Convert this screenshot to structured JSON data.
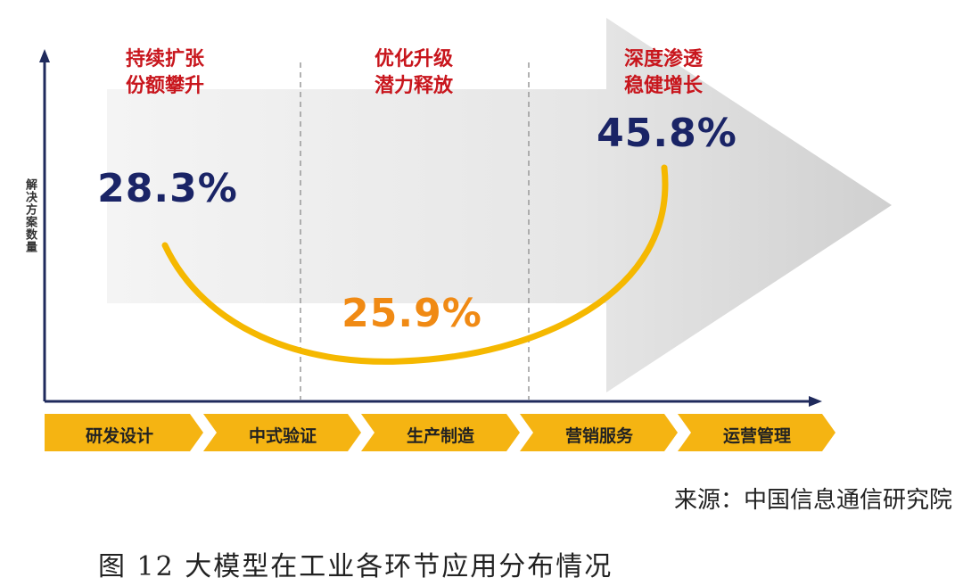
{
  "y_axis_label": "解决方案数量",
  "phases": [
    {
      "lines": [
        "持续扩张",
        "份额攀升"
      ],
      "share": "28.3%"
    },
    {
      "lines": [
        "优化升级",
        "潜力释放"
      ],
      "share": "25.9%"
    },
    {
      "lines": [
        "深度渗透",
        "稳健增长"
      ],
      "share": "45.8%"
    }
  ],
  "stages": [
    "研发设计",
    "中式验证",
    "生产制造",
    "营销服务",
    "运营管理"
  ],
  "source": "来源：中国信息通信研究院",
  "caption": "图 12 大模型在工业各环节应用分布情况"
}
